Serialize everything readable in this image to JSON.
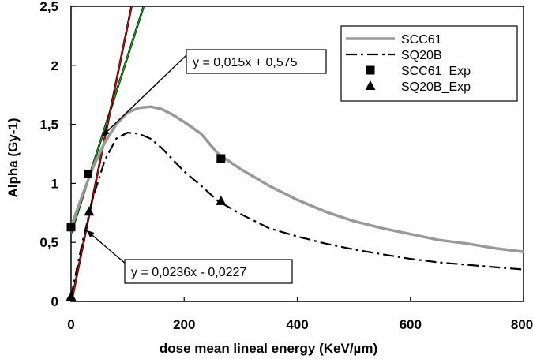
{
  "chart_data": {
    "type": "line",
    "xlabel": "dose mean lineal energy (KeV/µm)",
    "ylabel": "Alpha (Gy-1)",
    "xlim": [
      0,
      800
    ],
    "ylim": [
      0,
      2.5
    ],
    "x_ticks": [
      0,
      200,
      400,
      600,
      800
    ],
    "x_tick_labels": [
      "0",
      "200",
      "400",
      "600",
      "800"
    ],
    "y_ticks": [
      0,
      0.5,
      1,
      1.5,
      2,
      2.5
    ],
    "y_tick_labels": [
      "0",
      "0,5",
      "1",
      "1,5",
      "2",
      "2,5"
    ],
    "grid": false,
    "legend_position": "top-right",
    "series": [
      {
        "name": "SCC61",
        "style": "solid",
        "color": "#999999",
        "x": [
          0,
          20,
          40,
          60,
          80,
          100,
          120,
          140,
          160,
          180,
          200,
          230,
          260,
          300,
          350,
          400,
          450,
          500,
          550,
          600,
          650,
          700,
          750,
          800
        ],
        "y": [
          0.63,
          0.9,
          1.15,
          1.35,
          1.5,
          1.6,
          1.64,
          1.65,
          1.63,
          1.58,
          1.52,
          1.42,
          1.25,
          1.12,
          0.98,
          0.86,
          0.76,
          0.68,
          0.62,
          0.57,
          0.52,
          0.49,
          0.45,
          0.42
        ]
      },
      {
        "name": "SQ20B",
        "style": "dash-dot",
        "color": "#000000",
        "x": [
          0,
          20,
          40,
          60,
          80,
          100,
          120,
          140,
          160,
          180,
          200,
          230,
          260,
          300,
          350,
          400,
          450,
          500,
          550,
          600,
          650,
          700,
          750,
          800
        ],
        "y": [
          0.04,
          0.5,
          0.9,
          1.2,
          1.38,
          1.43,
          1.42,
          1.38,
          1.3,
          1.2,
          1.1,
          0.98,
          0.85,
          0.74,
          0.62,
          0.55,
          0.49,
          0.44,
          0.4,
          0.36,
          0.33,
          0.31,
          0.29,
          0.27
        ]
      },
      {
        "name": "SCC61_Exp",
        "style": "marker-square",
        "color": "#000000",
        "x": [
          0,
          30,
          265
        ],
        "y": [
          0.63,
          1.08,
          1.21
        ]
      },
      {
        "name": "SQ20B_Exp",
        "style": "marker-triangle",
        "color": "#000000",
        "x": [
          0,
          32,
          265
        ],
        "y": [
          0.04,
          0.76,
          0.85
        ]
      }
    ],
    "fits": [
      {
        "label": "y = 0,015x + 0,575",
        "slope": 0.015,
        "intercept": 0.575,
        "x_range": [
          0,
          128
        ],
        "colors": [
          "#00cc00",
          "#000000"
        ]
      },
      {
        "label": "y = 0,0236x - 0,0227",
        "slope": 0.0236,
        "intercept": -0.0227,
        "x_range": [
          0,
          108
        ],
        "colors": [
          "#ff0000",
          "#000000"
        ]
      }
    ],
    "annotations": [
      {
        "text": "y = 0,015x + 0,575",
        "points_to": [
          55,
          1.4
        ]
      },
      {
        "text": "y = 0,0236x - 0,0227",
        "points_to": [
          28,
          0.6
        ]
      }
    ]
  }
}
